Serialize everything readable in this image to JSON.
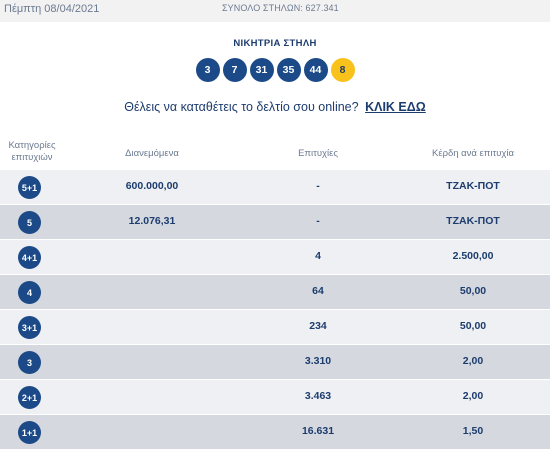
{
  "header": {
    "date": "Πέμπτη 08/04/2021",
    "total_columns": "ΣΥΝΟΛΟ ΣΤΗΛΩΝ: 627.341"
  },
  "winning": {
    "title": "ΝΙΚΗΤΡΙΑ ΣΤΗΛΗ",
    "numbers": [
      "3",
      "7",
      "31",
      "35",
      "44"
    ],
    "joker": "8"
  },
  "online": {
    "text": "Θέλεις να καταθέτεις το δελτίο σου online?",
    "link": "ΚΛΙΚ ΕΔΩ"
  },
  "table": {
    "headers": {
      "category_line1": "Κατηγορίες",
      "category_line2": "επιτυχιών",
      "distributed": "Διανεμόμενα",
      "wins": "Επιτυχίες",
      "prize": "Κέρδη ανά επιτυχία"
    },
    "rows": [
      {
        "category": "5+1",
        "distributed": "600.000,00",
        "wins": "-",
        "prize": "ΤΖΑΚ-ΠΟΤ"
      },
      {
        "category": "5",
        "distributed": "12.076,31",
        "wins": "-",
        "prize": "ΤΖΑΚ-ΠΟΤ"
      },
      {
        "category": "4+1",
        "distributed": "",
        "wins": "4",
        "prize": "2.500,00"
      },
      {
        "category": "4",
        "distributed": "",
        "wins": "64",
        "prize": "50,00"
      },
      {
        "category": "3+1",
        "distributed": "",
        "wins": "234",
        "prize": "50,00"
      },
      {
        "category": "3",
        "distributed": "",
        "wins": "3.310",
        "prize": "2,00"
      },
      {
        "category": "2+1",
        "distributed": "",
        "wins": "3.463",
        "prize": "2,00"
      },
      {
        "category": "1+1",
        "distributed": "",
        "wins": "16.631",
        "prize": "1,50"
      }
    ]
  }
}
